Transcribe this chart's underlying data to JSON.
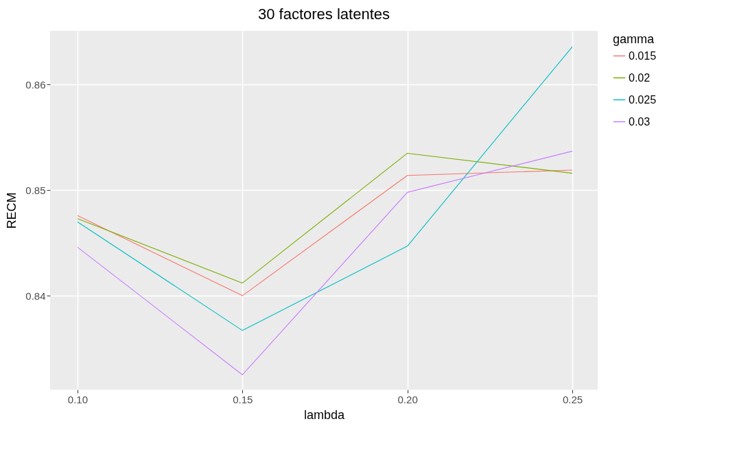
{
  "chart_data": {
    "type": "line",
    "title": "30 factores latentes",
    "xlabel": "lambda",
    "ylabel": "RECM",
    "legend_title": "gamma",
    "legend": "right",
    "grid": true,
    "x": [
      0.1,
      0.15,
      0.2,
      0.25
    ],
    "xlim": [
      0.0917,
      0.2577
    ],
    "xticks": [
      {
        "value": 0.1,
        "label": "0.10"
      },
      {
        "value": 0.15,
        "label": "0.15"
      },
      {
        "value": 0.2,
        "label": "0.20"
      },
      {
        "value": 0.25,
        "label": "0.25"
      }
    ],
    "ylim": [
      0.8311,
      0.8651
    ],
    "yticks": [
      0.84,
      0.85,
      0.86
    ],
    "series": [
      {
        "name": "0.015",
        "color": "#f8766d",
        "values": [
          0.8476,
          0.84,
          0.8514,
          0.8519
        ]
      },
      {
        "name": "0.02",
        "color": "#7cae00",
        "values": [
          0.8473,
          0.8412,
          0.8535,
          0.8516
        ]
      },
      {
        "name": "0.025",
        "color": "#00bfc4",
        "values": [
          0.847,
          0.8367,
          0.8447,
          0.8636
        ]
      },
      {
        "name": "0.03",
        "color": "#c77cff",
        "values": [
          0.8446,
          0.8325,
          0.8498,
          0.8537
        ]
      }
    ]
  }
}
